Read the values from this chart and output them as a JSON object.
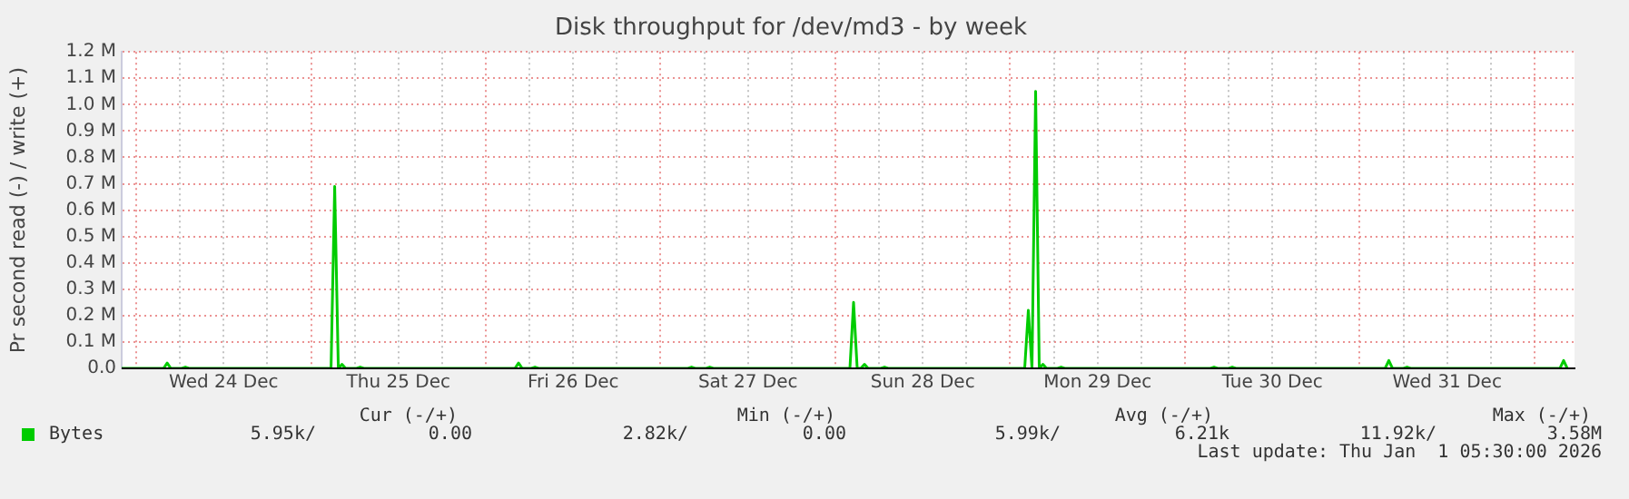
{
  "chart_data": {
    "type": "line",
    "title": "Disk throughput for /dev/md3 - by week",
    "ylabel": "Pr second read (-) / write (+)",
    "xlim": [
      "2025-12-23T22:00",
      "2026-01-01T05:30"
    ],
    "xticks": [
      {
        "value": "2025-12-24T00:00",
        "label": null
      },
      {
        "value": "2025-12-24T06:00",
        "label": null
      },
      {
        "value": "2025-12-24T12:00",
        "label": "Wed 24 Dec"
      },
      {
        "value": "2025-12-24T18:00",
        "label": null
      },
      {
        "value": "2025-12-25T00:00",
        "label": null
      },
      {
        "value": "2025-12-25T06:00",
        "label": null
      },
      {
        "value": "2025-12-25T12:00",
        "label": "Thu 25 Dec"
      },
      {
        "value": "2025-12-25T18:00",
        "label": null
      },
      {
        "value": "2025-12-26T00:00",
        "label": null
      },
      {
        "value": "2025-12-26T06:00",
        "label": null
      },
      {
        "value": "2025-12-26T12:00",
        "label": "Fri 26 Dec"
      },
      {
        "value": "2025-12-26T18:00",
        "label": null
      },
      {
        "value": "2025-12-27T00:00",
        "label": null
      },
      {
        "value": "2025-12-27T06:00",
        "label": null
      },
      {
        "value": "2025-12-27T12:00",
        "label": "Sat 27 Dec"
      },
      {
        "value": "2025-12-27T18:00",
        "label": null
      },
      {
        "value": "2025-12-28T00:00",
        "label": null
      },
      {
        "value": "2025-12-28T06:00",
        "label": null
      },
      {
        "value": "2025-12-28T12:00",
        "label": "Sun 28 Dec"
      },
      {
        "value": "2025-12-28T18:00",
        "label": null
      },
      {
        "value": "2025-12-29T00:00",
        "label": null
      },
      {
        "value": "2025-12-29T06:00",
        "label": null
      },
      {
        "value": "2025-12-29T12:00",
        "label": "Mon 29 Dec"
      },
      {
        "value": "2025-12-29T18:00",
        "label": null
      },
      {
        "value": "2025-12-30T00:00",
        "label": null
      },
      {
        "value": "2025-12-30T06:00",
        "label": null
      },
      {
        "value": "2025-12-30T12:00",
        "label": "Tue 30 Dec"
      },
      {
        "value": "2025-12-30T18:00",
        "label": null
      },
      {
        "value": "2025-12-31T00:00",
        "label": null
      },
      {
        "value": "2025-12-31T06:00",
        "label": null
      },
      {
        "value": "2025-12-31T12:00",
        "label": "Wed 31 Dec"
      },
      {
        "value": "2025-12-31T18:00",
        "label": null
      },
      {
        "value": "2026-01-01T00:00",
        "label": null
      }
    ],
    "ylim": [
      0,
      1200000
    ],
    "yticks": [
      {
        "value": 0,
        "label": "0.0"
      },
      {
        "value": 100000,
        "label": "0.1 M"
      },
      {
        "value": 200000,
        "label": "0.2 M"
      },
      {
        "value": 300000,
        "label": "0.3 M"
      },
      {
        "value": 400000,
        "label": "0.4 M"
      },
      {
        "value": 500000,
        "label": "0.5 M"
      },
      {
        "value": 600000,
        "label": "0.6 M"
      },
      {
        "value": 700000,
        "label": "0.7 M"
      },
      {
        "value": 800000,
        "label": "0.8 M"
      },
      {
        "value": 900000,
        "label": "0.9 M"
      },
      {
        "value": 1000000,
        "label": "1.0 M"
      },
      {
        "value": 1100000,
        "label": "1.1 M"
      },
      {
        "value": 1200000,
        "label": "1.2 M"
      }
    ],
    "x": [
      "2025-12-23T22:00",
      "2025-12-24T03:45",
      "2025-12-24T04:15",
      "2025-12-24T04:45",
      "2025-12-24T06:15",
      "2025-12-24T06:45",
      "2025-12-24T07:15",
      "2025-12-25T02:45",
      "2025-12-25T03:15",
      "2025-12-25T03:45",
      "2025-12-25T04:15",
      "2025-12-25T04:45",
      "2025-12-25T06:15",
      "2025-12-25T06:45",
      "2025-12-25T07:15",
      "2025-12-26T04:00",
      "2025-12-26T04:30",
      "2025-12-26T05:00",
      "2025-12-26T06:15",
      "2025-12-26T06:45",
      "2025-12-26T07:15",
      "2025-12-27T03:45",
      "2025-12-27T04:15",
      "2025-12-27T04:45",
      "2025-12-27T06:15",
      "2025-12-27T06:45",
      "2025-12-27T07:15",
      "2025-12-28T02:00",
      "2025-12-28T02:30",
      "2025-12-28T03:00",
      "2025-12-28T03:30",
      "2025-12-28T04:00",
      "2025-12-28T04:30",
      "2025-12-28T06:15",
      "2025-12-28T06:45",
      "2025-12-28T07:15",
      "2025-12-29T02:00",
      "2025-12-29T02:30",
      "2025-12-29T03:00",
      "2025-12-29T03:30",
      "2025-12-29T04:00",
      "2025-12-29T04:30",
      "2025-12-29T05:00",
      "2025-12-29T06:30",
      "2025-12-29T07:00",
      "2025-12-29T07:30",
      "2025-12-30T03:30",
      "2025-12-30T04:00",
      "2025-12-30T04:30",
      "2025-12-30T06:00",
      "2025-12-30T06:30",
      "2025-12-30T07:00",
      "2025-12-31T03:30",
      "2025-12-31T04:00",
      "2025-12-31T04:30",
      "2025-12-31T06:00",
      "2025-12-31T06:30",
      "2025-12-31T07:00",
      "2026-01-01T03:30",
      "2026-01-01T04:00",
      "2026-01-01T04:30"
    ],
    "series": [
      {
        "name": "Bytes",
        "color": "#00cc00",
        "values": [
          0,
          0,
          20000,
          0,
          0,
          5000,
          0,
          0,
          690000,
          0,
          15000,
          0,
          0,
          5000,
          0,
          0,
          20000,
          0,
          0,
          5000,
          0,
          0,
          5000,
          0,
          0,
          5000,
          0,
          0,
          250000,
          0,
          0,
          15000,
          0,
          0,
          5000,
          0,
          0,
          220000,
          0,
          1050000,
          0,
          15000,
          0,
          0,
          5000,
          0,
          0,
          5000,
          0,
          0,
          5000,
          0,
          0,
          30000,
          0,
          0,
          5000,
          0,
          0,
          30000,
          0
        ]
      }
    ],
    "grid": true,
    "legend": "bottom",
    "annotations": [
      "Cur (-/+)",
      "Min (-/+)",
      "Avg (-/+)",
      "Max (-/+)",
      "5.95k/",
      "0.00",
      "2.82k/",
      "0.00",
      "5.99k/",
      "6.21k",
      "11.92k/",
      "3.58M",
      "Last update: Thu Jan  1 05:30:00 2026"
    ]
  }
}
